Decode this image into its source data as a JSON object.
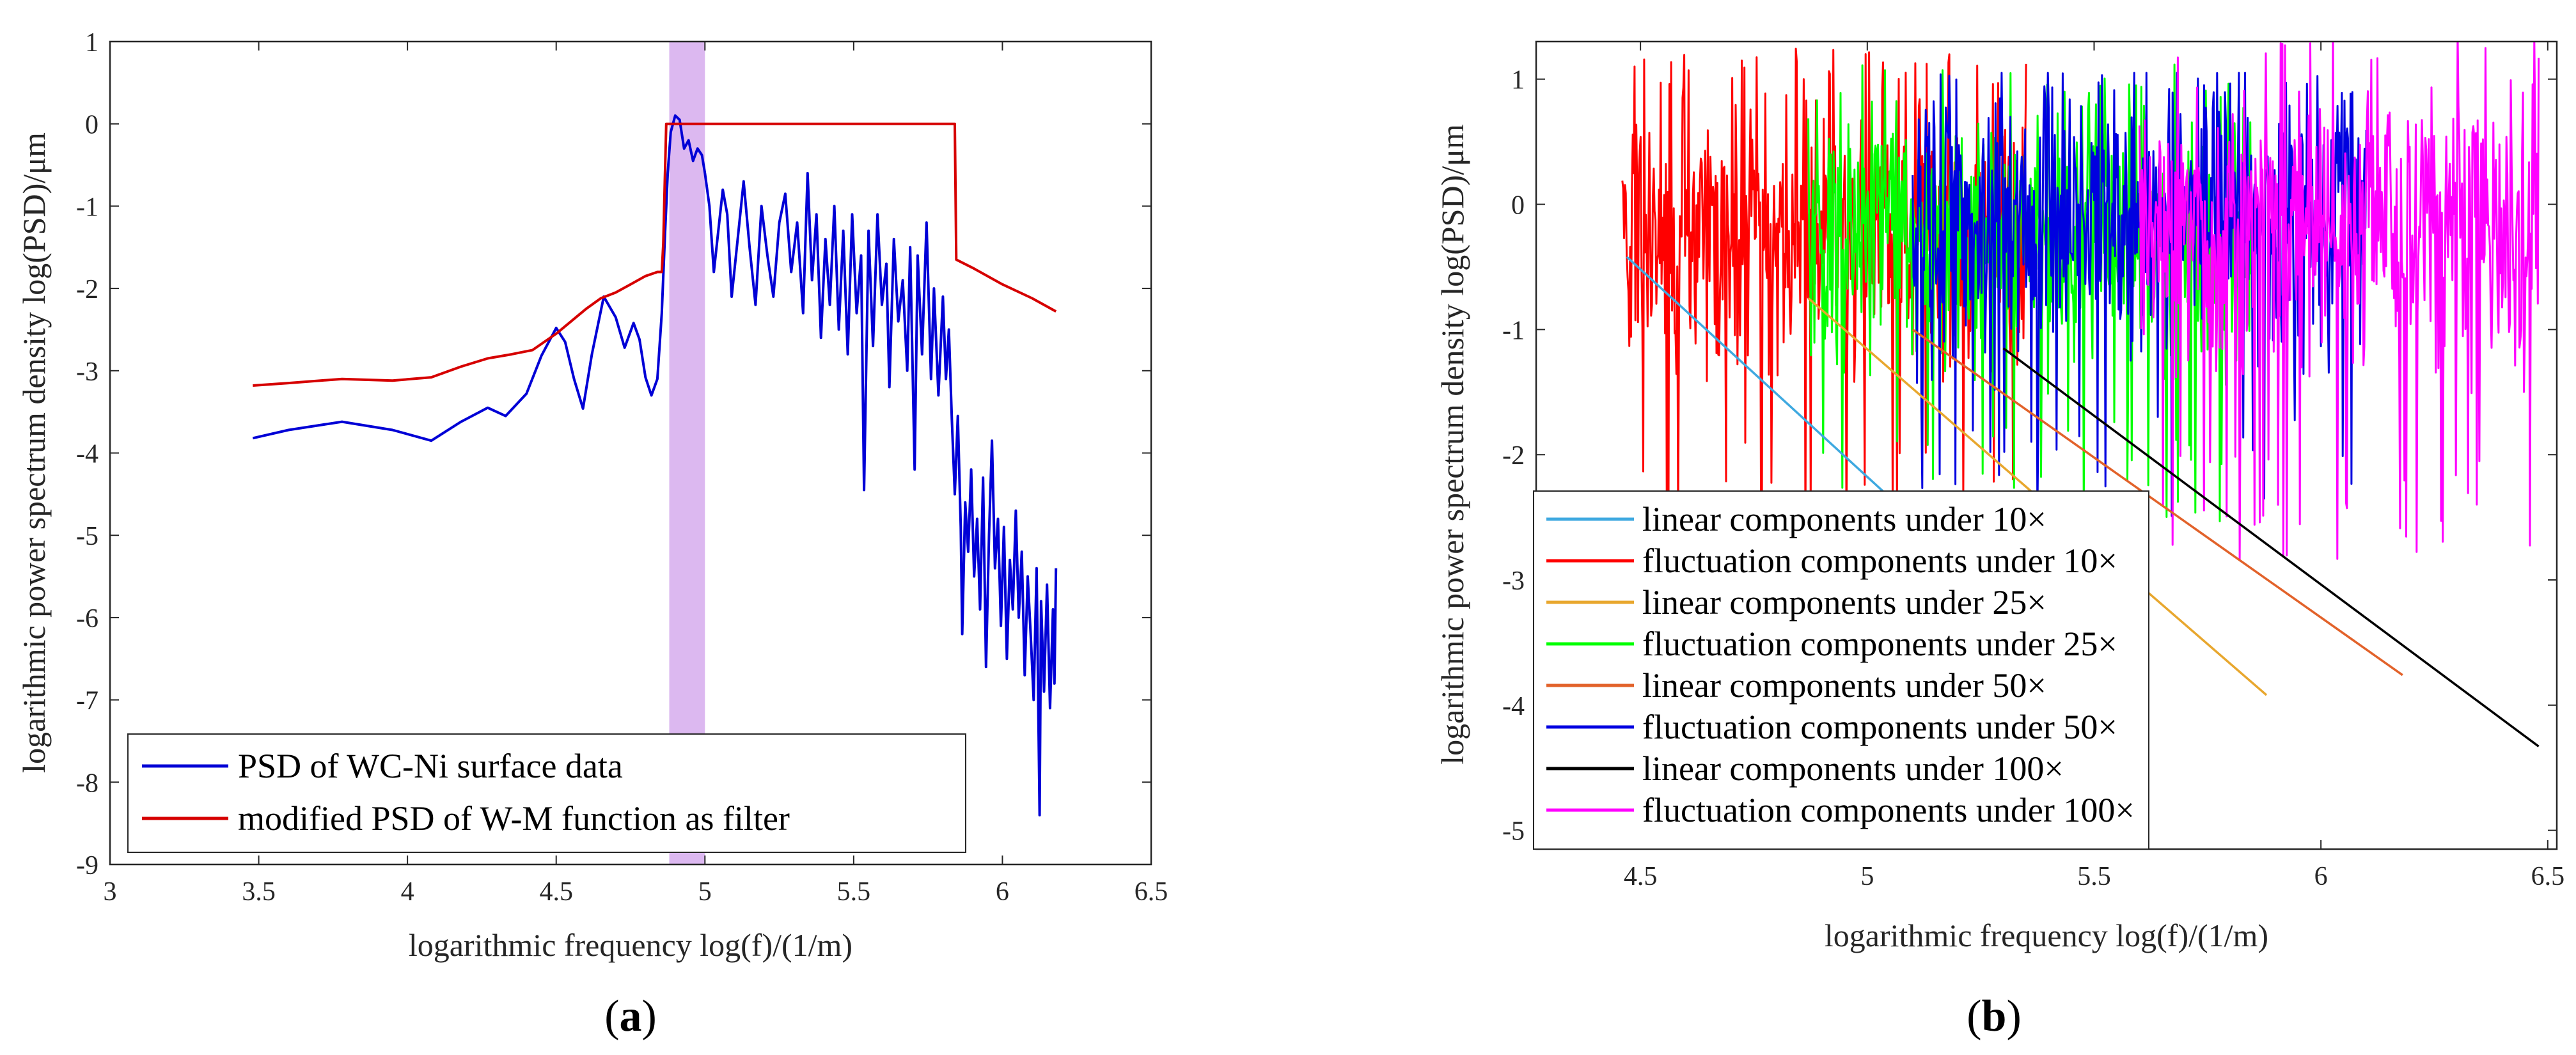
{
  "chart_data": [
    {
      "type": "line",
      "panel_label": "(a)",
      "panel_letter": "a",
      "xlabel": "logarithmic frequency log(f)/(1/m)",
      "ylabel": "logarithmic power spectrum density log(PSD)/μm",
      "xlim": [
        3,
        6.5
      ],
      "ylim": [
        -9,
        1
      ],
      "xticks": [
        3,
        3.5,
        4,
        4.5,
        5,
        5.5,
        6,
        6.5
      ],
      "yticks": [
        -9,
        -8,
        -7,
        -6,
        -5,
        -4,
        -3,
        -2,
        -1,
        0,
        1
      ],
      "legend_position": "bottom-left",
      "highlight_band": {
        "x_from": 4.88,
        "x_to": 5.0,
        "color": "#dcb8f0"
      },
      "series": [
        {
          "name": "PSD of WC-Ni surface data",
          "color": "#0000d6",
          "points": [
            [
              3.48,
              -3.82
            ],
            [
              3.6,
              -3.72
            ],
            [
              3.78,
              -3.62
            ],
            [
              3.95,
              -3.72
            ],
            [
              4.08,
              -3.85
            ],
            [
              4.18,
              -3.62
            ],
            [
              4.27,
              -3.45
            ],
            [
              4.33,
              -3.55
            ],
            [
              4.4,
              -3.28
            ],
            [
              4.45,
              -2.82
            ],
            [
              4.5,
              -2.48
            ],
            [
              4.53,
              -2.65
            ],
            [
              4.56,
              -3.1
            ],
            [
              4.59,
              -3.46
            ],
            [
              4.62,
              -2.8
            ],
            [
              4.66,
              -2.1
            ],
            [
              4.7,
              -2.35
            ],
            [
              4.73,
              -2.72
            ],
            [
              4.76,
              -2.42
            ],
            [
              4.78,
              -2.62
            ],
            [
              4.8,
              -3.08
            ],
            [
              4.82,
              -3.3
            ],
            [
              4.84,
              -3.1
            ],
            [
              4.855,
              -2.3
            ],
            [
              4.865,
              -1.4
            ],
            [
              4.875,
              -0.6
            ],
            [
              4.885,
              -0.1
            ],
            [
              4.9,
              0.1
            ],
            [
              4.915,
              0.05
            ],
            [
              4.93,
              -0.3
            ],
            [
              4.945,
              -0.2
            ],
            [
              4.96,
              -0.45
            ],
            [
              4.975,
              -0.3
            ],
            [
              4.99,
              -0.38
            ],
            [
              5.0,
              -0.6
            ],
            [
              5.015,
              -1.0
            ],
            [
              5.03,
              -1.8
            ],
            [
              5.045,
              -1.3
            ],
            [
              5.06,
              -0.8
            ],
            [
              5.075,
              -1.1
            ],
            [
              5.09,
              -2.1
            ],
            [
              5.11,
              -1.4
            ],
            [
              5.13,
              -0.7
            ],
            [
              5.15,
              -1.5
            ],
            [
              5.17,
              -2.2
            ],
            [
              5.19,
              -1.0
            ],
            [
              5.21,
              -1.6
            ],
            [
              5.23,
              -2.1
            ],
            [
              5.25,
              -1.2
            ],
            [
              5.27,
              -0.85
            ],
            [
              5.29,
              -1.8
            ],
            [
              5.31,
              -1.2
            ],
            [
              5.33,
              -2.3
            ],
            [
              5.345,
              -0.6
            ],
            [
              5.36,
              -1.9
            ],
            [
              5.375,
              -1.1
            ],
            [
              5.39,
              -2.6
            ],
            [
              5.405,
              -1.4
            ],
            [
              5.42,
              -2.2
            ],
            [
              5.435,
              -1.0
            ],
            [
              5.45,
              -2.5
            ],
            [
              5.465,
              -1.3
            ],
            [
              5.48,
              -2.8
            ],
            [
              5.495,
              -1.1
            ],
            [
              5.51,
              -2.3
            ],
            [
              5.525,
              -1.6
            ],
            [
              5.535,
              -4.45
            ],
            [
              5.55,
              -1.3
            ],
            [
              5.565,
              -2.7
            ],
            [
              5.58,
              -1.1
            ],
            [
              5.595,
              -2.2
            ],
            [
              5.61,
              -1.7
            ],
            [
              5.62,
              -3.2
            ],
            [
              5.635,
              -1.4
            ],
            [
              5.65,
              -2.4
            ],
            [
              5.665,
              -1.9
            ],
            [
              5.68,
              -3.0
            ],
            [
              5.69,
              -1.5
            ],
            [
              5.705,
              -4.2
            ],
            [
              5.715,
              -1.6
            ],
            [
              5.73,
              -2.8
            ],
            [
              5.745,
              -1.2
            ],
            [
              5.76,
              -3.1
            ],
            [
              5.77,
              -2.0
            ],
            [
              5.785,
              -3.3
            ],
            [
              5.8,
              -2.1
            ],
            [
              5.81,
              -3.1
            ],
            [
              5.82,
              -2.5
            ],
            [
              5.83,
              -3.6
            ],
            [
              5.84,
              -4.5
            ],
            [
              5.85,
              -3.55
            ],
            [
              5.86,
              -4.9
            ],
            [
              5.865,
              -6.2
            ],
            [
              5.875,
              -4.6
            ],
            [
              5.885,
              -5.2
            ],
            [
              5.895,
              -4.2
            ],
            [
              5.905,
              -5.5
            ],
            [
              5.915,
              -4.8
            ],
            [
              5.925,
              -5.9
            ],
            [
              5.935,
              -4.3
            ],
            [
              5.945,
              -6.6
            ],
            [
              5.955,
              -5.0
            ],
            [
              5.965,
              -3.85
            ],
            [
              5.975,
              -5.4
            ],
            [
              5.985,
              -4.8
            ],
            [
              5.995,
              -6.1
            ],
            [
              6.005,
              -4.9
            ],
            [
              6.015,
              -6.5
            ],
            [
              6.025,
              -5.3
            ],
            [
              6.035,
              -5.9
            ],
            [
              6.045,
              -4.7
            ],
            [
              6.055,
              -6.0
            ],
            [
              6.065,
              -5.2
            ],
            [
              6.075,
              -6.7
            ],
            [
              6.085,
              -5.5
            ],
            [
              6.095,
              -6.2
            ],
            [
              6.105,
              -7.0
            ],
            [
              6.115,
              -5.4
            ],
            [
              6.125,
              -8.4
            ],
            [
              6.13,
              -5.8
            ],
            [
              6.14,
              -6.9
            ],
            [
              6.15,
              -5.6
            ],
            [
              6.16,
              -7.1
            ],
            [
              6.17,
              -5.9
            ],
            [
              6.175,
              -6.8
            ],
            [
              6.18,
              -5.4
            ]
          ]
        },
        {
          "name": "modified PSD of W-M function as filter",
          "color": "#d60000",
          "points": [
            [
              3.48,
              -3.18
            ],
            [
              3.6,
              -3.15
            ],
            [
              3.78,
              -3.1
            ],
            [
              3.95,
              -3.12
            ],
            [
              4.08,
              -3.08
            ],
            [
              4.18,
              -2.95
            ],
            [
              4.27,
              -2.85
            ],
            [
              4.35,
              -2.8
            ],
            [
              4.42,
              -2.75
            ],
            [
              4.5,
              -2.55
            ],
            [
              4.55,
              -2.4
            ],
            [
              4.6,
              -2.25
            ],
            [
              4.65,
              -2.12
            ],
            [
              4.7,
              -2.05
            ],
            [
              4.75,
              -1.95
            ],
            [
              4.8,
              -1.85
            ],
            [
              4.84,
              -1.8
            ],
            [
              4.855,
              -1.8
            ],
            [
              4.86,
              -1.45
            ],
            [
              4.865,
              -0.7
            ],
            [
              4.87,
              0
            ],
            [
              5.84,
              0
            ],
            [
              5.845,
              -1.65
            ],
            [
              5.9,
              -1.75
            ],
            [
              6.0,
              -1.95
            ],
            [
              6.1,
              -2.12
            ],
            [
              6.18,
              -2.28
            ]
          ]
        }
      ]
    },
    {
      "type": "line",
      "panel_label": "(b)",
      "panel_letter": "b",
      "xlabel": "logarithmic frequency log(f)/(1/m)",
      "ylabel": "logarithmic power spectrum density log(PSD)/μm",
      "xlim": [
        4.27,
        6.52
      ],
      "ylim": [
        -5.15,
        1.3
      ],
      "xticks": [
        4.5,
        5,
        5.5,
        6,
        6.5
      ],
      "yticks": [
        -5,
        -4,
        -3,
        -2,
        -1,
        0,
        1
      ],
      "legend_position": "bottom-left",
      "series": [
        {
          "name": "linear components under 10×",
          "color": "#3fa9e0",
          "kind": "linear",
          "x_start": 4.47,
          "x_end": 5.55,
          "y_start": -0.42,
          "y_end": -4.0
        },
        {
          "name": "fluctuation components under 10×",
          "color": "#ff0000",
          "kind": "fluctuation",
          "x_start": 4.46,
          "x_end": 5.35,
          "mean": -0.2,
          "min": -2.8,
          "max": 1.25
        },
        {
          "name": "linear components under 25×",
          "color": "#e8a72e",
          "kind": "linear",
          "x_start": 4.87,
          "x_end": 5.88,
          "y_start": -0.75,
          "y_end": -3.92
        },
        {
          "name": "fluctuation components under 25×",
          "color": "#00ff00",
          "kind": "fluctuation",
          "x_start": 4.87,
          "x_end": 5.85,
          "mean": -0.2,
          "min": -2.6,
          "max": 1.15
        },
        {
          "name": "linear components under 50×",
          "color": "#e2622a",
          "kind": "linear",
          "x_start": 5.1,
          "x_end": 6.18,
          "y_start": -1.0,
          "y_end": -3.76
        },
        {
          "name": "fluctuation components under 50×",
          "color": "#0000e0",
          "kind": "fluctuation",
          "x_start": 5.1,
          "x_end": 6.1,
          "mean": -0.1,
          "min": -2.5,
          "max": 1.05
        },
        {
          "name": "linear components under 100×",
          "color": "#000000",
          "kind": "linear",
          "x_start": 5.3,
          "x_end": 6.48,
          "y_start": -1.15,
          "y_end": -4.33
        },
        {
          "name": "fluctuation components under 100×",
          "color": "#ff00ff",
          "kind": "fluctuation",
          "x_start": 5.6,
          "x_end": 6.48,
          "mean": -0.2,
          "min": -2.9,
          "max": 1.4
        }
      ]
    }
  ]
}
